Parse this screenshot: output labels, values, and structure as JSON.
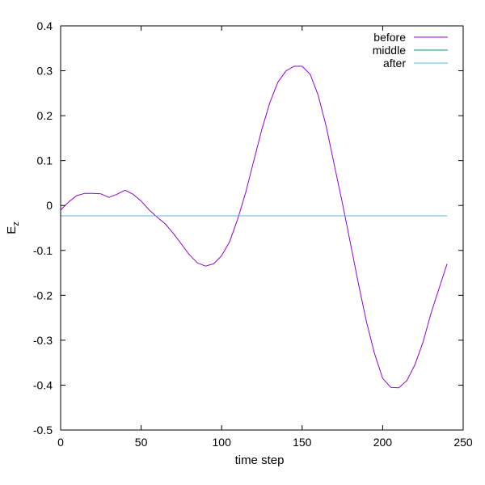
{
  "chart_data": {
    "type": "line",
    "xlabel": "time step",
    "ylabel": "E",
    "ylabel_subscript": "z",
    "xlim": [
      0,
      250
    ],
    "ylim": [
      -0.5,
      0.4
    ],
    "xticks": [
      0,
      50,
      100,
      150,
      200,
      250
    ],
    "xtick_labels": [
      "0",
      "50",
      "100",
      "150",
      "200",
      "250"
    ],
    "yticks": [
      -0.5,
      -0.4,
      -0.3,
      -0.2,
      -0.1,
      0,
      0.1,
      0.2,
      0.3,
      0.4
    ],
    "ytick_labels": [
      "-0.5",
      "-0.4",
      "-0.3",
      "-0.2",
      "-0.1",
      "0",
      "0.1",
      "0.2",
      "0.3",
      "0.4"
    ],
    "grid": false,
    "legend_position": "top-right",
    "series": [
      {
        "name": "before",
        "color": "#9400d3",
        "x": [
          0,
          5,
          10,
          15,
          20,
          25,
          30,
          35,
          40,
          45,
          50,
          55,
          60,
          65,
          70,
          75,
          80,
          85,
          90,
          95,
          100,
          105,
          110,
          115,
          120,
          125,
          130,
          135,
          140,
          145,
          150,
          155,
          160,
          165,
          170,
          175,
          180,
          185,
          190,
          195,
          200,
          205,
          210,
          215,
          220,
          225,
          230,
          235,
          240
        ],
        "y": [
          -0.01,
          0.008,
          0.022,
          0.027,
          0.027,
          0.026,
          0.018,
          0.025,
          0.034,
          0.025,
          0.01,
          -0.01,
          -0.026,
          -0.041,
          -0.062,
          -0.086,
          -0.11,
          -0.128,
          -0.135,
          -0.13,
          -0.112,
          -0.08,
          -0.03,
          0.03,
          0.1,
          0.17,
          0.23,
          0.275,
          0.3,
          0.31,
          0.31,
          0.292,
          0.245,
          0.175,
          0.09,
          0.005,
          -0.085,
          -0.175,
          -0.26,
          -0.33,
          -0.385,
          -0.405,
          -0.406,
          -0.39,
          -0.355,
          -0.305,
          -0.24,
          -0.185,
          -0.13
        ]
      },
      {
        "name": "middle",
        "color": "#009e73",
        "x": [
          0,
          240
        ],
        "y": [
          -0.023,
          -0.023
        ]
      },
      {
        "name": "after",
        "color": "#56b4e9",
        "x": [
          0,
          240
        ],
        "y": [
          -0.023,
          -0.023
        ]
      }
    ]
  }
}
